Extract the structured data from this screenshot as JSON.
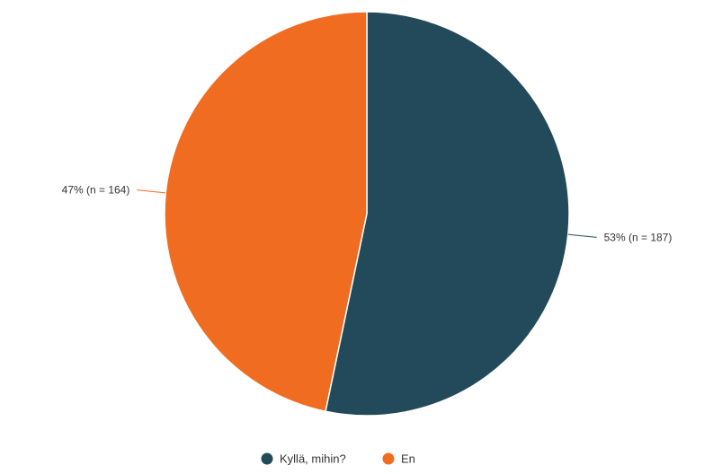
{
  "chart_data": {
    "type": "pie",
    "title": "",
    "slices": [
      {
        "label": "Kyllä, mihin?",
        "value": 187,
        "percent_label": "53% (n = 187)",
        "color": "#234a5a"
      },
      {
        "label": "En",
        "value": 164,
        "percent_label": "47% (n = 164)",
        "color": "#ef6c21"
      }
    ],
    "legend": {
      "position": "bottom",
      "items": [
        "Kyllä, mihin?",
        "En"
      ]
    }
  }
}
